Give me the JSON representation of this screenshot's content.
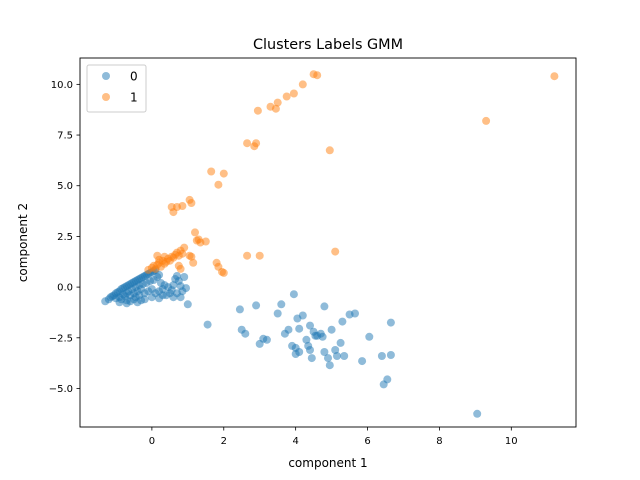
{
  "chart_data": {
    "type": "scatter",
    "title": "Clusters Labels GMM",
    "xlabel": "component 1",
    "ylabel": "component 2",
    "xlim": [
      -2.0,
      11.8
    ],
    "ylim": [
      -6.9,
      11.3
    ],
    "xticks": [
      0,
      2,
      4,
      6,
      8,
      10
    ],
    "yticks": [
      -5.0,
      -2.5,
      0.0,
      2.5,
      5.0,
      7.5,
      10.0
    ],
    "xtick_labels": [
      "0",
      "2",
      "4",
      "6",
      "8",
      "10"
    ],
    "ytick_labels": [
      "−5.0",
      "−2.5",
      "0.0",
      "2.5",
      "5.0",
      "7.5",
      "10.0"
    ],
    "grid": false,
    "legend_position": "upper-left",
    "series": [
      {
        "name": "0",
        "color": "#1f77b4",
        "points": [
          [
            -1.3,
            -0.7
          ],
          [
            -1.2,
            -0.6
          ],
          [
            -1.15,
            -0.5
          ],
          [
            -1.1,
            -0.45
          ],
          [
            -1.05,
            -0.4
          ],
          [
            -1.0,
            -0.3
          ],
          [
            -1.0,
            -0.55
          ],
          [
            -0.95,
            -0.25
          ],
          [
            -0.9,
            -0.2
          ],
          [
            -0.9,
            -0.5
          ],
          [
            -0.85,
            -0.1
          ],
          [
            -0.85,
            -0.6
          ],
          [
            -0.8,
            -0.05
          ],
          [
            -0.8,
            -0.35
          ],
          [
            -0.75,
            0.0
          ],
          [
            -0.75,
            -0.45
          ],
          [
            -0.7,
            0.05
          ],
          [
            -0.7,
            -0.3
          ],
          [
            -0.7,
            -0.65
          ],
          [
            -0.65,
            0.1
          ],
          [
            -0.65,
            -0.2
          ],
          [
            -0.6,
            0.15
          ],
          [
            -0.6,
            -0.4
          ],
          [
            -0.6,
            -0.7
          ],
          [
            -0.55,
            0.2
          ],
          [
            -0.55,
            -0.1
          ],
          [
            -0.5,
            0.25
          ],
          [
            -0.5,
            -0.3
          ],
          [
            -0.5,
            -0.6
          ],
          [
            -0.45,
            0.3
          ],
          [
            -0.45,
            0.0
          ],
          [
            -0.45,
            -0.5
          ],
          [
            -0.4,
            0.35
          ],
          [
            -0.4,
            -0.2
          ],
          [
            -0.35,
            0.4
          ],
          [
            -0.35,
            0.1
          ],
          [
            -0.35,
            -0.4
          ],
          [
            -0.3,
            0.45
          ],
          [
            -0.3,
            -0.1
          ],
          [
            -0.3,
            -0.65
          ],
          [
            -0.25,
            0.5
          ],
          [
            -0.25,
            0.15
          ],
          [
            -0.2,
            0.55
          ],
          [
            -0.2,
            -0.3
          ],
          [
            -0.15,
            0.6
          ],
          [
            -0.15,
            0.2
          ],
          [
            -0.1,
            0.65
          ],
          [
            -0.1,
            -0.2
          ],
          [
            -0.05,
            0.7
          ],
          [
            -0.05,
            0.3
          ],
          [
            0.0,
            0.75
          ],
          [
            0.0,
            -0.1
          ],
          [
            0.05,
            0.8
          ],
          [
            0.05,
            0.35
          ],
          [
            0.1,
            0.85
          ],
          [
            0.1,
            -0.3
          ],
          [
            0.15,
            0.5
          ],
          [
            0.2,
            0.6
          ],
          [
            0.2,
            -0.2
          ],
          [
            0.25,
            0.2
          ],
          [
            0.3,
            -0.1
          ],
          [
            0.35,
            0.1
          ],
          [
            0.4,
            -0.4
          ],
          [
            0.45,
            0.0
          ],
          [
            -0.9,
            -0.75
          ],
          [
            -0.7,
            -0.8
          ],
          [
            -0.4,
            -0.75
          ],
          [
            -0.2,
            -0.6
          ],
          [
            0.0,
            -0.5
          ],
          [
            0.2,
            -0.55
          ],
          [
            0.3,
            -0.4
          ],
          [
            0.5,
            -0.3
          ],
          [
            0.55,
            -0.15
          ],
          [
            0.6,
            0.1
          ],
          [
            0.65,
            0.4
          ],
          [
            0.7,
            0.55
          ],
          [
            0.75,
            0.3
          ],
          [
            0.8,
            0.05
          ],
          [
            0.6,
            -0.5
          ],
          [
            0.7,
            -0.3
          ],
          [
            0.85,
            -0.2
          ],
          [
            0.9,
            0.5
          ],
          [
            0.95,
            -0.05
          ],
          [
            0.8,
            -0.5
          ],
          [
            1.0,
            -0.85
          ],
          [
            1.55,
            -1.85
          ],
          [
            2.45,
            -1.1
          ],
          [
            2.5,
            -2.1
          ],
          [
            2.6,
            -2.3
          ],
          [
            2.9,
            -0.9
          ],
          [
            3.0,
            -2.8
          ],
          [
            3.1,
            -2.55
          ],
          [
            3.2,
            -2.6
          ],
          [
            3.5,
            -1.3
          ],
          [
            3.6,
            -0.85
          ],
          [
            3.7,
            -2.3
          ],
          [
            3.8,
            -2.1
          ],
          [
            3.9,
            -2.9
          ],
          [
            3.95,
            -0.35
          ],
          [
            4.0,
            -3.0
          ],
          [
            4.0,
            -3.3
          ],
          [
            4.05,
            -1.55
          ],
          [
            4.1,
            -3.2
          ],
          [
            4.1,
            -2.05
          ],
          [
            4.2,
            -1.4
          ],
          [
            4.3,
            -2.6
          ],
          [
            4.35,
            -2.9
          ],
          [
            4.4,
            -1.9
          ],
          [
            4.4,
            -3.1
          ],
          [
            4.45,
            -3.5
          ],
          [
            4.5,
            -2.2
          ],
          [
            4.55,
            -2.4
          ],
          [
            4.6,
            -2.4
          ],
          [
            4.7,
            -2.3
          ],
          [
            4.75,
            -2.45
          ],
          [
            4.8,
            -3.2
          ],
          [
            4.8,
            -0.95
          ],
          [
            4.9,
            -3.5
          ],
          [
            4.95,
            -3.85
          ],
          [
            5.0,
            -2.1
          ],
          [
            5.1,
            -3.1
          ],
          [
            5.15,
            -3.4
          ],
          [
            5.25,
            -2.75
          ],
          [
            5.3,
            -1.7
          ],
          [
            5.35,
            -3.4
          ],
          [
            5.5,
            -1.35
          ],
          [
            5.65,
            -1.3
          ],
          [
            5.85,
            -3.65
          ],
          [
            6.05,
            -2.45
          ],
          [
            6.4,
            -3.4
          ],
          [
            6.45,
            -4.8
          ],
          [
            6.55,
            -4.55
          ],
          [
            6.65,
            -3.35
          ],
          [
            6.65,
            -1.75
          ],
          [
            9.05,
            -6.25
          ]
        ]
      },
      {
        "name": "1",
        "color": "#ff7f0e",
        "points": [
          [
            -0.1,
            0.85
          ],
          [
            0.0,
            0.95
          ],
          [
            0.05,
            1.05
          ],
          [
            0.1,
            0.9
          ],
          [
            0.15,
            1.1
          ],
          [
            0.2,
            1.2
          ],
          [
            0.25,
            1.0
          ],
          [
            0.3,
            1.3
          ],
          [
            0.35,
            1.15
          ],
          [
            0.4,
            1.25
          ],
          [
            0.45,
            1.4
          ],
          [
            0.5,
            1.3
          ],
          [
            0.55,
            1.5
          ],
          [
            0.6,
            1.45
          ],
          [
            0.65,
            1.6
          ],
          [
            0.7,
            1.7
          ],
          [
            0.75,
            1.55
          ],
          [
            0.8,
            1.8
          ],
          [
            0.85,
            1.65
          ],
          [
            0.9,
            1.95
          ],
          [
            0.35,
            1.5
          ],
          [
            0.2,
            1.35
          ],
          [
            0.15,
            1.55
          ],
          [
            0.75,
            1.05
          ],
          [
            0.8,
            0.9
          ],
          [
            1.05,
            1.55
          ],
          [
            1.1,
            1.5
          ],
          [
            1.15,
            1.2
          ],
          [
            1.2,
            2.7
          ],
          [
            1.3,
            2.35
          ],
          [
            1.35,
            2.2
          ],
          [
            1.5,
            2.25
          ],
          [
            1.25,
            2.3
          ],
          [
            0.55,
            3.95
          ],
          [
            0.6,
            3.7
          ],
          [
            0.7,
            3.95
          ],
          [
            0.85,
            4.0
          ],
          [
            1.05,
            4.3
          ],
          [
            1.1,
            4.15
          ],
          [
            1.8,
            1.2
          ],
          [
            1.85,
            1.0
          ],
          [
            1.95,
            0.75
          ],
          [
            2.0,
            0.7
          ],
          [
            1.65,
            5.7
          ],
          [
            1.85,
            5.05
          ],
          [
            2.0,
            5.6
          ],
          [
            2.65,
            1.55
          ],
          [
            2.65,
            7.1
          ],
          [
            2.85,
            6.95
          ],
          [
            2.9,
            7.1
          ],
          [
            2.95,
            8.7
          ],
          [
            3.0,
            1.55
          ],
          [
            3.3,
            8.9
          ],
          [
            3.45,
            8.8
          ],
          [
            3.5,
            9.1
          ],
          [
            3.75,
            9.4
          ],
          [
            3.95,
            9.55
          ],
          [
            4.2,
            10.0
          ],
          [
            4.5,
            10.5
          ],
          [
            4.6,
            10.45
          ],
          [
            4.95,
            6.75
          ],
          [
            5.1,
            1.75
          ],
          [
            9.3,
            8.2
          ],
          [
            11.2,
            10.4
          ]
        ]
      }
    ]
  }
}
